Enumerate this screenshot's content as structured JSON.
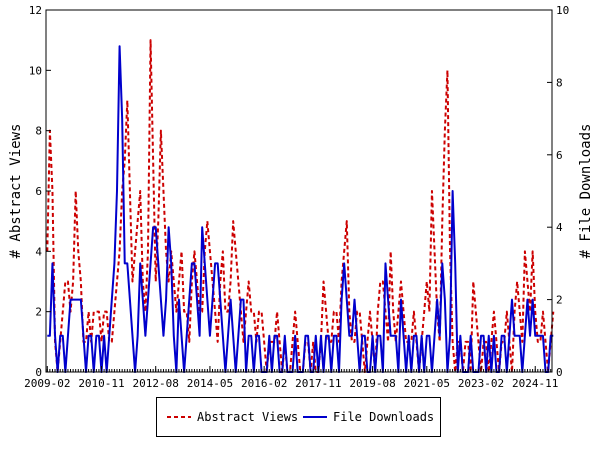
{
  "chart_data": {
    "type": "line",
    "title": "",
    "xlabel": "",
    "ylabel": "# Abstract Views",
    "y2label": "# File Downloads",
    "ylim": [
      0,
      12
    ],
    "y2lim": [
      0,
      10
    ],
    "yticks": [
      0,
      2,
      4,
      6,
      8,
      10,
      12
    ],
    "y2ticks": [
      0,
      2,
      4,
      6,
      8,
      10
    ],
    "xtick_labels": [
      "2009-02",
      "2010-11",
      "2012-08",
      "2014-05",
      "2016-02",
      "2017-11",
      "2019-08",
      "2021-05",
      "2023-02",
      "2024-11"
    ],
    "xtick_month_index": [
      0,
      21,
      42,
      63,
      84,
      105,
      126,
      147,
      168,
      189
    ],
    "n_months": 196,
    "grid": false,
    "legend_position": "bottom-center",
    "series": [
      {
        "name": "Abstract Views",
        "axis": "left",
        "color": "#cc0000",
        "style": "dashed",
        "values": [
          4,
          8,
          6,
          1,
          0,
          1,
          2,
          3,
          3,
          2,
          3,
          6,
          4,
          3,
          1,
          1,
          2,
          1,
          2,
          2,
          2,
          1,
          2,
          2,
          1,
          1,
          2,
          3,
          4,
          6,
          7,
          9,
          6,
          3,
          4,
          5,
          6,
          3,
          2,
          4,
          11,
          7,
          3,
          5,
          8,
          6,
          4,
          3,
          4,
          3,
          2,
          3,
          4,
          2,
          2,
          1,
          3,
          4,
          3,
          2,
          2,
          4,
          5,
          4,
          3,
          2,
          1,
          3,
          4,
          2,
          2,
          3,
          5,
          4,
          3,
          2,
          1,
          2,
          3,
          2,
          2,
          1,
          2,
          2,
          1,
          0,
          1,
          1,
          1,
          2,
          1,
          0,
          1,
          0,
          0,
          1,
          2,
          1,
          0,
          0,
          1,
          1,
          0,
          1,
          0,
          0,
          1,
          3,
          2,
          1,
          1,
          2,
          2,
          1,
          3,
          4,
          5,
          2,
          1,
          1,
          2,
          2,
          1,
          0,
          1,
          2,
          1,
          0,
          2,
          3,
          3,
          2,
          1,
          4,
          2,
          1,
          2,
          3,
          2,
          1,
          1,
          1,
          2,
          1,
          0,
          1,
          2,
          3,
          2,
          6,
          4,
          2,
          1,
          5,
          8,
          10,
          4,
          1,
          0,
          1,
          1,
          0,
          1,
          1,
          0,
          3,
          2,
          1,
          0,
          1,
          1,
          0,
          1,
          2,
          1,
          0,
          1,
          1,
          2,
          1,
          0,
          2,
          3,
          2,
          1,
          4,
          3,
          2,
          4,
          2,
          1,
          1,
          2,
          1,
          0,
          1,
          2
        ]
      },
      {
        "name": "File Downloads",
        "axis": "right",
        "color": "#0000cc",
        "style": "solid",
        "values": [
          1,
          1,
          3,
          1,
          0,
          1,
          1,
          0,
          1,
          2,
          2,
          2,
          2,
          2,
          1,
          0,
          1,
          1,
          0,
          1,
          1,
          0,
          1,
          0,
          1,
          2,
          3,
          5,
          9,
          7,
          3,
          3,
          2,
          1,
          0,
          1,
          3,
          2,
          1,
          2,
          3,
          4,
          4,
          3,
          2,
          1,
          2,
          4,
          3,
          1,
          0,
          2,
          1,
          0,
          1,
          2,
          3,
          3,
          2,
          1,
          4,
          3,
          2,
          1,
          2,
          3,
          3,
          2,
          1,
          0,
          1,
          2,
          1,
          0,
          1,
          2,
          2,
          0,
          1,
          1,
          0,
          1,
          1,
          0,
          0,
          0,
          1,
          0,
          1,
          1,
          0,
          0,
          1,
          0,
          0,
          0,
          1,
          0,
          0,
          0,
          1,
          1,
          0,
          0,
          1,
          0,
          1,
          0,
          1,
          1,
          0,
          1,
          1,
          0,
          2,
          3,
          2,
          1,
          1,
          2,
          1,
          0,
          1,
          1,
          0,
          0,
          1,
          0,
          1,
          1,
          0,
          3,
          2,
          1,
          1,
          1,
          0,
          2,
          1,
          0,
          1,
          0,
          1,
          1,
          0,
          1,
          0,
          1,
          1,
          0,
          1,
          2,
          1,
          3,
          2,
          0,
          1,
          5,
          3,
          0,
          1,
          0,
          0,
          0,
          1,
          0,
          0,
          0,
          1,
          1,
          0,
          1,
          0,
          1,
          0,
          0,
          1,
          1,
          0,
          1,
          2,
          1,
          1,
          1,
          0,
          1,
          2,
          1,
          2,
          1,
          1,
          1,
          1,
          0,
          0,
          1,
          1
        ]
      }
    ]
  },
  "legend": {
    "entries": [
      "Abstract Views",
      "File Downloads"
    ]
  }
}
